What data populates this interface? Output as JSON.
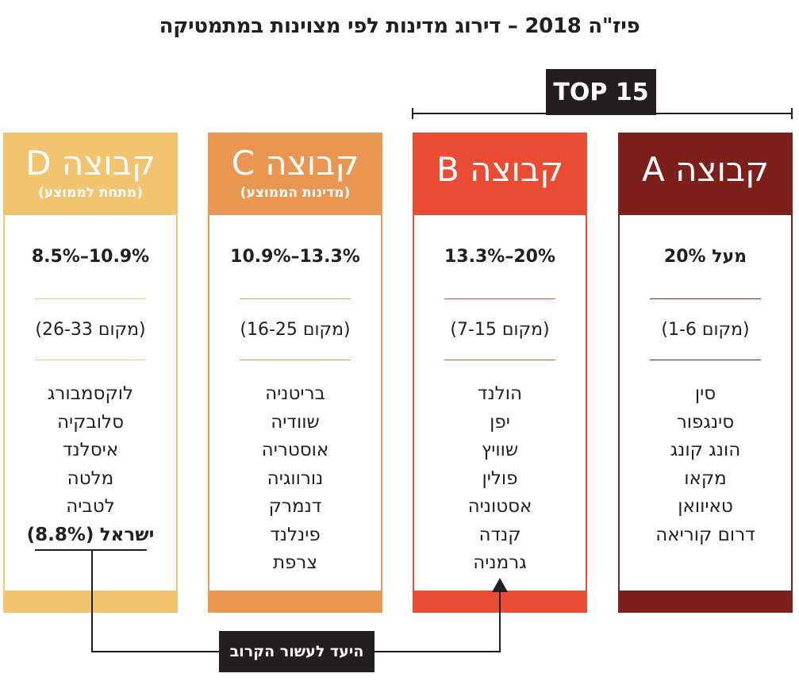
{
  "title": "פיז\"ה 2018 – דירוג מדינות לפי מצוינות במתמטיקה",
  "top_label": "TOP 15",
  "goal_label": "היעד לעשור הקרוב",
  "colors": {
    "group_a": "#7d1f1b",
    "group_b": "#ea4b33",
    "group_c": "#ea9653",
    "group_d": "#f2c470",
    "dark": "#231f20"
  },
  "chart_data": {
    "type": "table",
    "title": "פיז\"ה 2018 – דירוג מדינות לפי מצוינות במתמטיקה",
    "groups": [
      {
        "name": "קבוצה A",
        "subtitle": "",
        "range": "מעל 20%",
        "rank": "(מקום 1-6)",
        "countries": [
          "סין",
          "סינגפור",
          "הונג קונג",
          "מקאו",
          "טאיוואן",
          "דרום קוריאה"
        ]
      },
      {
        "name": "קבוצה B",
        "subtitle": "",
        "range": "13.3%–20%",
        "rank": "(מקום 7-15)",
        "countries": [
          "הולנד",
          "יפן",
          "שוויץ",
          "פולין",
          "אסטוניה",
          "קנדה",
          "גרמניה"
        ]
      },
      {
        "name": "קבוצה C",
        "subtitle": "(מדינות הממוצע)",
        "range": "10.9%–13.3%",
        "rank": "(מקום 16-25)",
        "countries": [
          "בריטניה",
          "שוודיה",
          "אוסטריה",
          "נורווגיה",
          "דנמרק",
          "פינלנד",
          "צרפת"
        ]
      },
      {
        "name": "קבוצה D",
        "subtitle": "(מתחת לממוצע)",
        "range": "8.5%–10.9%",
        "rank": "(מקום 26-33)",
        "countries": [
          "לוקסמבורג",
          "סלובקיה",
          "איסלנד",
          "מלטה",
          "לטביה"
        ],
        "highlight": {
          "name": "ישראל",
          "value": "(8.8%)"
        }
      }
    ]
  }
}
